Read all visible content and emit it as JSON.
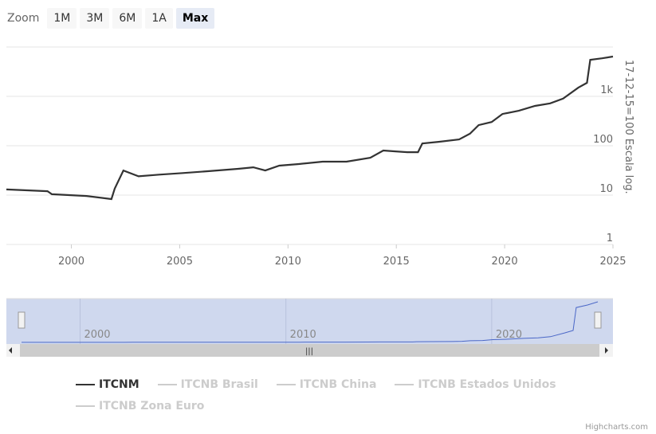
{
  "zoom": {
    "label": "Zoom",
    "buttons": [
      "1M",
      "3M",
      "6M",
      "1A",
      "Max"
    ],
    "active": "Max"
  },
  "chart_data": {
    "type": "line",
    "title": "",
    "ylabel": "17-12-15=100 Escala log.",
    "yscale": "log",
    "ylim": [
      1,
      10000
    ],
    "xlim": [
      1997,
      2025
    ],
    "y_ticks": [
      "1",
      "10",
      "100",
      "1k"
    ],
    "x_ticks": [
      "2000",
      "2005",
      "2010",
      "2015",
      "2020",
      "2025"
    ],
    "grid": true,
    "series": [
      {
        "name": "ITCNM",
        "color": "#333333",
        "x": [
          1997.0,
          1998.9,
          1999.1,
          2000.7,
          2001.85,
          2002.0,
          2002.4,
          2003.1,
          2004.05,
          2005.15,
          2006.3,
          2007.7,
          2008.4,
          2008.95,
          2009.6,
          2010.5,
          2011.6,
          2012.7,
          2013.8,
          2014.4,
          2014.9,
          2015.5,
          2016.0,
          2016.2,
          2016.95,
          2017.9,
          2018.4,
          2018.8,
          2019.4,
          2019.9,
          2020.65,
          2021.4,
          2022.1,
          2022.7,
          2023.4,
          2023.8,
          2023.95,
          2024.5,
          2025.0
        ],
        "y": [
          13,
          12,
          10.4,
          9.6,
          8.3,
          13.5,
          31.5,
          24,
          26,
          28,
          30.5,
          34,
          36.6,
          31.5,
          39.5,
          42.5,
          47.5,
          47.5,
          57,
          80,
          77,
          74,
          74,
          111,
          120,
          134,
          175,
          262,
          303,
          440,
          510,
          640,
          720,
          900,
          1500,
          1880,
          5500,
          5900,
          6400
        ]
      }
    ],
    "navigator": {
      "x_ticks": [
        "2000",
        "2010",
        "2020"
      ],
      "line_color": "#4a67c7"
    }
  },
  "legend": {
    "items": [
      {
        "label": "ITCNM",
        "visible": true
      },
      {
        "label": "ITCNB Brasil",
        "visible": false
      },
      {
        "label": "ITCNB China",
        "visible": false
      },
      {
        "label": "ITCNB Estados Unidos",
        "visible": false
      },
      {
        "label": "ITCNB Zona Euro",
        "visible": false
      }
    ]
  },
  "credits": "Highcharts.com"
}
